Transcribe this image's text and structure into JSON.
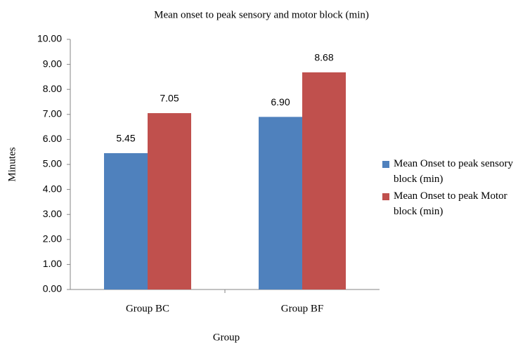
{
  "chart_data": {
    "type": "bar",
    "title": "Mean onset to peak sensory and motor block (min)",
    "x_label": "Group",
    "y_label": "Minutes",
    "categories": [
      "Group BC",
      "Group BF"
    ],
    "series": [
      {
        "name": "Mean Onset to peak sensory block (min)",
        "color": "#4f81bd",
        "values": [
          5.45,
          6.9
        ],
        "value_labels": [
          "5.45",
          "6.90"
        ]
      },
      {
        "name": "Mean Onset to peak Motor block (min)",
        "color": "#c0504d",
        "values": [
          7.05,
          8.68
        ],
        "value_labels": [
          "7.05",
          "8.68"
        ]
      }
    ],
    "ylim": [
      0,
      10
    ],
    "yticks": [
      {
        "value": 0,
        "label": "0.00"
      },
      {
        "value": 1,
        "label": "1.00"
      },
      {
        "value": 2,
        "label": "2.00"
      },
      {
        "value": 3,
        "label": "3.00"
      },
      {
        "value": 4,
        "label": "4.00"
      },
      {
        "value": 5,
        "label": "5.00"
      },
      {
        "value": 6,
        "label": "6.00"
      },
      {
        "value": 7,
        "label": "7.00"
      },
      {
        "value": 8,
        "label": "8.00"
      },
      {
        "value": 9,
        "label": "9.00"
      },
      {
        "value": 10,
        "label": "10.00"
      }
    ],
    "grid": false,
    "legend": "right"
  }
}
